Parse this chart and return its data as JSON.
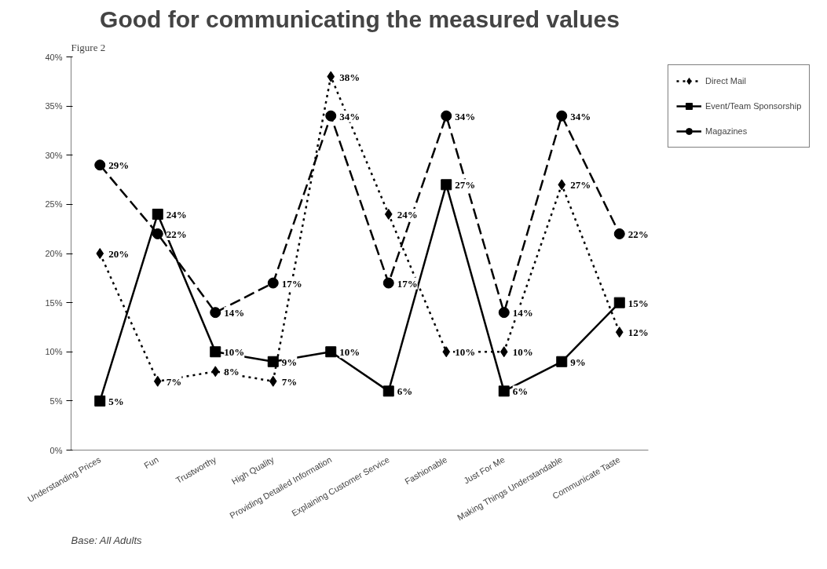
{
  "chart_data": {
    "type": "line",
    "title": "Good for communicating the measured values",
    "categories": [
      "Understanding Prices",
      "Fun",
      "Trustworthy",
      "High Quality",
      "Providing Detailed Information",
      "Explaining Customer Service",
      "Fashionable",
      "Just For Me",
      "Making Things Understandable",
      "Communicate Taste"
    ],
    "series": [
      {
        "name": "Direct Mail",
        "color": "#000000",
        "marker": "diamond",
        "line_style": "dotted",
        "values": [
          20,
          7,
          8,
          7,
          38,
          24,
          10,
          10,
          27,
          12
        ],
        "value_labels": [
          "20%",
          "7%",
          "8%",
          "7%",
          "38%",
          "24%",
          "10%",
          "10%",
          "27%",
          "12%"
        ]
      },
      {
        "name": "Event/Team Sponsorship",
        "color": "#000000",
        "marker": "square",
        "line_style": "solid",
        "values": [
          5,
          24,
          10,
          9,
          10,
          6,
          27,
          6,
          9,
          15
        ],
        "value_labels": [
          "5%",
          "24%",
          "10%",
          "9%",
          "10%",
          "6%",
          "27%",
          "6%",
          "9%",
          "15%"
        ]
      },
      {
        "name": "Magazines",
        "color": "#000000",
        "marker": "circle",
        "line_style": "dashed",
        "values": [
          29,
          22,
          14,
          17,
          34,
          17,
          34,
          14,
          34,
          22
        ],
        "value_labels": [
          "29%",
          "22%",
          "14%",
          "17%",
          "34%",
          "17%",
          "34%",
          "14%",
          "34%",
          "22%"
        ]
      }
    ],
    "ylim": [
      0,
      40
    ],
    "yticks": [
      {
        "value": 0,
        "label": "0%"
      },
      {
        "value": 5,
        "label": "5%"
      },
      {
        "value": 10,
        "label": "10%"
      },
      {
        "value": 15,
        "label": "15%"
      },
      {
        "value": 20,
        "label": "20%"
      },
      {
        "value": 25,
        "label": "25%"
      },
      {
        "value": 30,
        "label": "30%"
      },
      {
        "value": 35,
        "label": "35%"
      },
      {
        "value": 40,
        "label": "40%"
      }
    ],
    "grid": false,
    "legend": "top right",
    "annotations": [
      "Figure 2",
      "Base: All Adults"
    ]
  }
}
